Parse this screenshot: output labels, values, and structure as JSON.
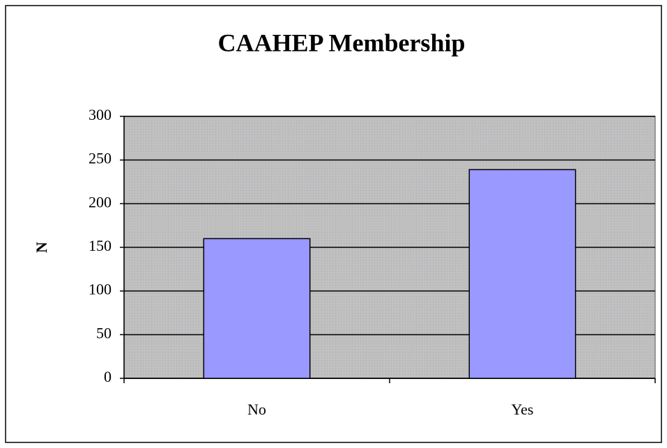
{
  "chart_data": {
    "type": "bar",
    "title": "CAAHEP Membership",
    "y_label": "N",
    "categories": [
      "No",
      "Yes"
    ],
    "values": [
      160,
      239
    ],
    "color": "#9999ff",
    "ylim": [
      0,
      300
    ],
    "yticks": [
      0,
      50,
      100,
      150,
      200,
      250,
      300
    ],
    "grid": true
  }
}
